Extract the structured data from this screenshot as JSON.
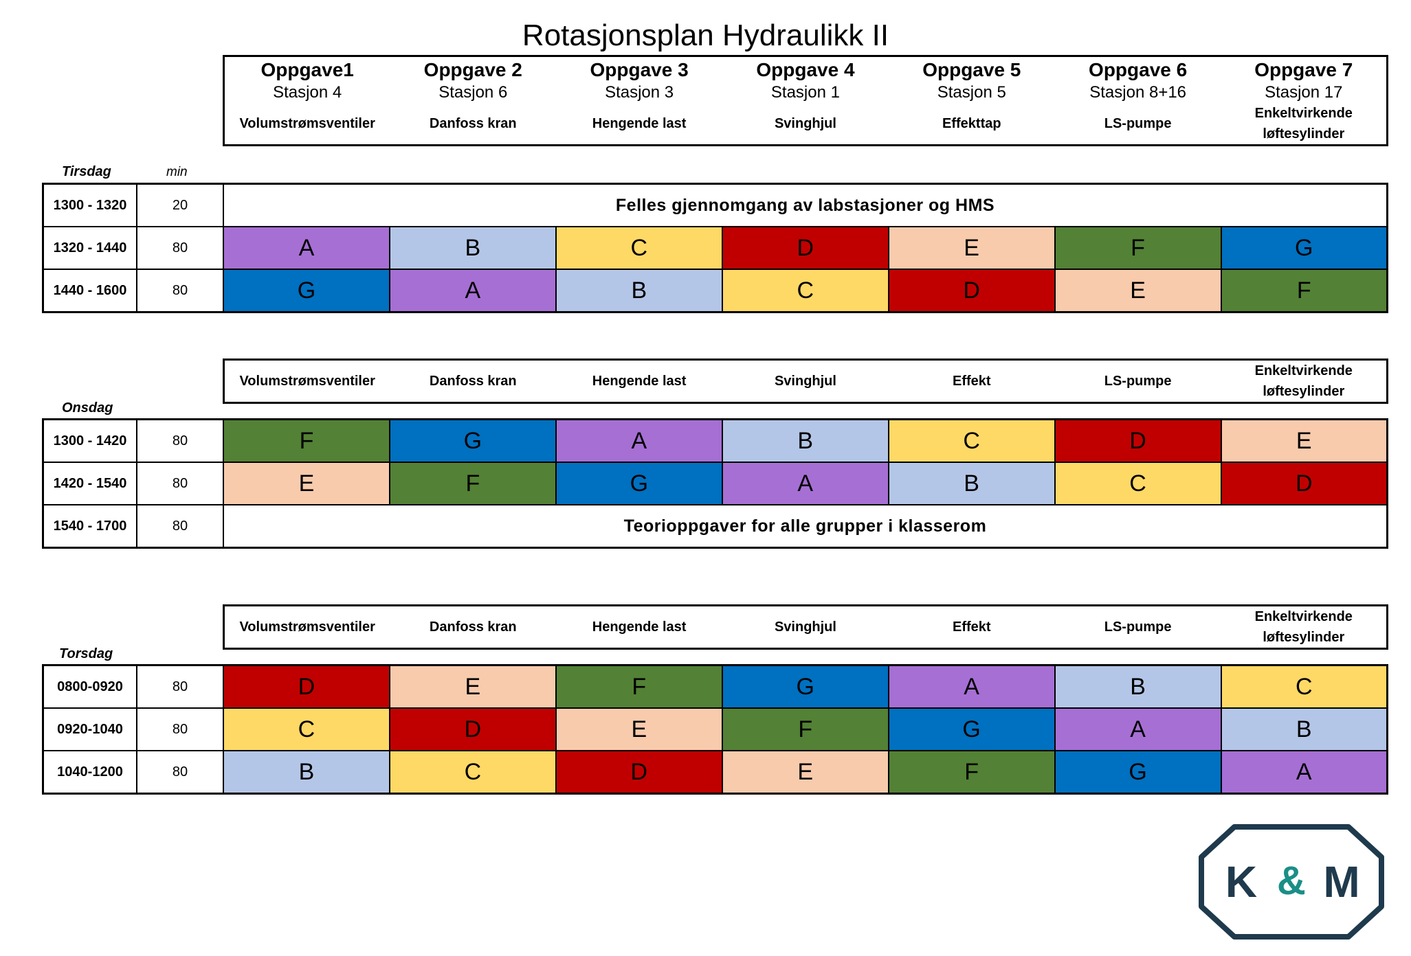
{
  "title": "Rotasjonsplan Hydraulikk II",
  "tasks": [
    {
      "title": "Oppgave1",
      "station": "Stasjon 4",
      "desc1": "Volumstrømsventiler",
      "desc2": ""
    },
    {
      "title": "Oppgave 2",
      "station": "Stasjon 6",
      "desc1": "Danfoss kran",
      "desc2": ""
    },
    {
      "title": "Oppgave 3",
      "station": "Stasjon 3",
      "desc1": "Hengende last",
      "desc2": ""
    },
    {
      "title": "Oppgave 4",
      "station": "Stasjon  1",
      "desc1": "Svinghjul",
      "desc2": ""
    },
    {
      "title": "Oppgave 5",
      "station": "Stasjon 5",
      "desc1": "Effekttap",
      "desc2": ""
    },
    {
      "title": "Oppgave 6",
      "station": "Stasjon 8+16",
      "desc1": "LS-pumpe",
      "desc2": ""
    },
    {
      "title": "Oppgave 7",
      "station": "Stasjon 17",
      "desc1": "Enkeltvirkende",
      "desc2": "løftesylinder"
    }
  ],
  "subheader": [
    {
      "l1": "Volumstrømsventiler",
      "l2": ""
    },
    {
      "l1": "Danfoss kran",
      "l2": ""
    },
    {
      "l1": "Hengende last",
      "l2": ""
    },
    {
      "l1": "Svinghjul",
      "l2": ""
    },
    {
      "l1": "Effekt",
      "l2": ""
    },
    {
      "l1": "LS-pumpe",
      "l2": ""
    },
    {
      "l1": "Enkeltvirkende",
      "l2": "løftesylinder"
    }
  ],
  "colors": {
    "A": "#a66fd4",
    "B": "#b4c6e7",
    "C": "#ffd966",
    "D": "#c00000",
    "E": "#f8cbad",
    "F": "#538135",
    "G": "#0070c0"
  },
  "min_label": "min",
  "days": {
    "tirsdag": {
      "label": "Tirsdag",
      "rows": [
        {
          "time": "1300 - 1320",
          "min": "20",
          "merged": "Felles gjennomgang av labstasjoner og HMS"
        },
        {
          "time": "1320 - 1440",
          "min": "80",
          "groups": [
            "A",
            "B",
            "C",
            "D",
            "E",
            "F",
            "G"
          ]
        },
        {
          "time": "1440 - 1600",
          "min": "80",
          "groups": [
            "G",
            "A",
            "B",
            "C",
            "D",
            "E",
            "F"
          ]
        }
      ]
    },
    "onsdag": {
      "label": "Onsdag",
      "rows": [
        {
          "time": "1300 - 1420",
          "min": "80",
          "groups": [
            "F",
            "G",
            "A",
            "B",
            "C",
            "D",
            "E"
          ]
        },
        {
          "time": "1420 - 1540",
          "min": "80",
          "groups": [
            "E",
            "F",
            "G",
            "A",
            "B",
            "C",
            "D"
          ]
        },
        {
          "time": "1540 - 1700",
          "min": "80",
          "merged": "Teorioppgaver for alle grupper i klasserom"
        }
      ]
    },
    "torsdag": {
      "label": "Torsdag",
      "rows": [
        {
          "time": "0800-0920",
          "min": "80",
          "groups": [
            "D",
            "E",
            "F",
            "G",
            "A",
            "B",
            "C"
          ]
        },
        {
          "time": "0920-1040",
          "min": "80",
          "groups": [
            "C",
            "D",
            "E",
            "F",
            "G",
            "A",
            "B"
          ]
        },
        {
          "time": "1040-1200",
          "min": "80",
          "groups": [
            "B",
            "C",
            "D",
            "E",
            "F",
            "G",
            "A"
          ]
        }
      ]
    }
  },
  "logo": {
    "left": "K",
    "right": "M",
    "mid": "&"
  }
}
